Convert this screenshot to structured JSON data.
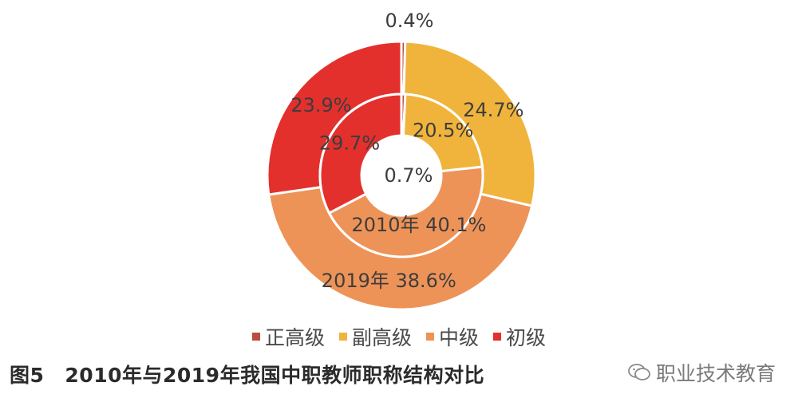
{
  "chart_data": {
    "type": "donut",
    "title": "",
    "categories": [
      "正高级",
      "副高级",
      "中级",
      "初级"
    ],
    "colors": [
      "#b84f3f",
      "#f0b43c",
      "#ee9358",
      "#e3302d"
    ],
    "series": [
      {
        "name": "2019年",
        "ring": "outer",
        "values": [
          0.4,
          24.7,
          38.6,
          23.9
        ]
      },
      {
        "name": "2010年",
        "ring": "inner",
        "values": [
          0.7,
          20.5,
          40.1,
          29.7
        ]
      }
    ],
    "data_labels": {
      "outer": [
        "0.4%",
        "24.7%",
        "2019年 38.6%",
        "23.9%"
      ],
      "inner": [
        "0.7%",
        "20.5%",
        "2010年 40.1%",
        "29.7%"
      ]
    }
  },
  "legend": {
    "items": [
      {
        "label": "正高级",
        "color": "#b84f3f"
      },
      {
        "label": "副高级",
        "color": "#f0b43c"
      },
      {
        "label": "中级",
        "color": "#ee9358"
      },
      {
        "label": "初级",
        "color": "#e3302d"
      }
    ]
  },
  "caption": {
    "figure_no": "图5",
    "text": "2010年与2019年我国中职教师职称结构对比"
  },
  "watermark": {
    "text": "职业技术教育",
    "icon": "wechat-icon"
  }
}
